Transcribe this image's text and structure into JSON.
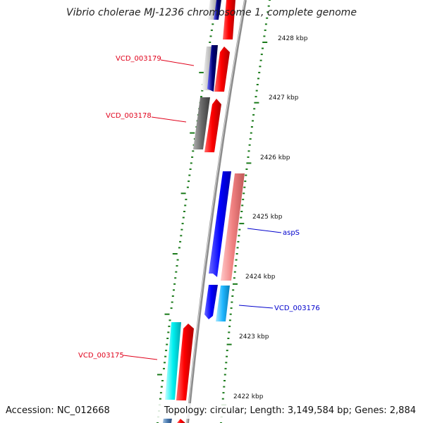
{
  "title": "Vibrio cholerae MJ-1236 chromosome 1, complete genome",
  "footer": {
    "accession": "Accession: NC_012668",
    "topology": "Topology: circular; Length: 3,149,584 bp; Genes: 2,884"
  },
  "colors": {
    "forward_label": "#e0001a",
    "reverse_label": "#0000cc",
    "tick": "#1a7a1a",
    "backbone": "#8c8c8c"
  },
  "ticks": [
    {
      "label": "2428 kbp"
    },
    {
      "label": "2427 kbp"
    },
    {
      "label": "2426 kbp"
    },
    {
      "label": "2425 kbp"
    },
    {
      "label": "2424 kbp"
    },
    {
      "label": "2423 kbp"
    },
    {
      "label": "2422 kbp"
    }
  ],
  "gene_labels": [
    {
      "text": "VCD_003179",
      "strand": "forward"
    },
    {
      "text": "VCD_003178",
      "strand": "forward"
    },
    {
      "text": "aspS",
      "strand": "reverse"
    },
    {
      "text": "VCD_003176",
      "strand": "reverse"
    },
    {
      "text": "VCD_003175",
      "strand": "forward"
    }
  ]
}
